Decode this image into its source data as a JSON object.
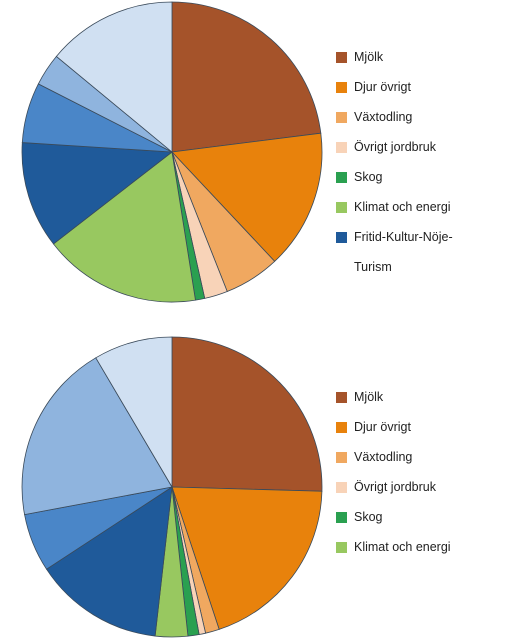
{
  "chart_data": [
    {
      "type": "pie",
      "categories": [
        "Mjölk",
        "Djur övrigt",
        "Växtodling",
        "Övrigt jordbruk",
        "Skog",
        "Klimat och energi",
        "Fritid-Kultur-Nöje-Turism",
        null,
        null,
        null
      ],
      "values": [
        23,
        15,
        6,
        2.5,
        1,
        17,
        11.5,
        6.5,
        3.5,
        14
      ],
      "colors": [
        "#a5532a",
        "#e8820c",
        "#f0a860",
        "#f8d3b8",
        "#2aa050",
        "#98c860",
        "#1f5a9a",
        "#4a86c8",
        "#8fb4de",
        "#d0e0f2"
      ]
    },
    {
      "type": "pie",
      "categories": [
        "Mjölk",
        "Djur övrigt",
        "Växtodling",
        "Övrigt jordbruk",
        "Skog",
        "Klimat och energi",
        null,
        null,
        null,
        null
      ],
      "values": [
        25.5,
        19.5,
        1.5,
        0.7,
        1.2,
        3.5,
        14,
        6.3,
        19.5,
        8.5
      ],
      "colors": [
        "#a5532a",
        "#e8820c",
        "#f0a860",
        "#f8d3b8",
        "#2aa050",
        "#98c860",
        "#1f5a9a",
        "#4a86c8",
        "#8fb4de",
        "#d0e0f2"
      ]
    }
  ]
}
